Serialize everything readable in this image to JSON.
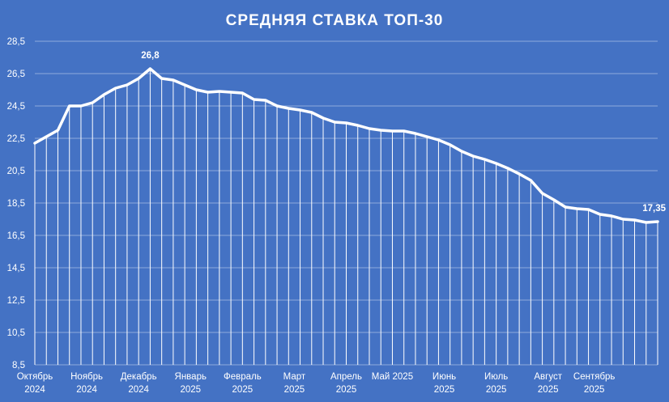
{
  "chart_data": {
    "type": "line",
    "title": "СРЕДНЯЯ СТАВКА ТОП-30",
    "xlabel": "",
    "ylabel": "",
    "ylim": [
      8.5,
      28.5
    ],
    "yticks": [
      "8,5",
      "10,5",
      "12,5",
      "14,5",
      "16,5",
      "18,5",
      "20,5",
      "22,5",
      "24,5",
      "26,5",
      "28,5"
    ],
    "grid": true,
    "month_labels": [
      {
        "month": "Октябрь",
        "year": "2024",
        "index": 0
      },
      {
        "month": "Ноябрь",
        "year": "2024",
        "index": 4.5
      },
      {
        "month": "Декабрь",
        "year": "2024",
        "index": 9
      },
      {
        "month": "Январь",
        "year": "2025",
        "index": 13.5
      },
      {
        "month": "Февраль",
        "year": "2025",
        "index": 18
      },
      {
        "month": "Март",
        "year": "2025",
        "index": 22.5
      },
      {
        "month": "Апрель",
        "year": "2025",
        "index": 27
      },
      {
        "month": "Май 2025",
        "year": "",
        "index": 31
      },
      {
        "month": "Июнь",
        "year": "2025",
        "index": 35.5
      },
      {
        "month": "Июль",
        "year": "2025",
        "index": 40
      },
      {
        "month": "Август",
        "year": "2025",
        "index": 44.5
      },
      {
        "month": "Сентябрь",
        "year": "2025",
        "index": 48.5
      }
    ],
    "series": [
      {
        "values": [
          22.2,
          22.6,
          23.0,
          24.5,
          24.5,
          24.7,
          25.2,
          25.6,
          25.8,
          26.2,
          26.8,
          26.2,
          26.1,
          25.8,
          25.5,
          25.35,
          25.4,
          25.35,
          25.3,
          24.9,
          24.85,
          24.5,
          24.35,
          24.25,
          24.1,
          23.75,
          23.5,
          23.45,
          23.3,
          23.1,
          23.0,
          22.95,
          22.95,
          22.8,
          22.6,
          22.4,
          22.1,
          21.7,
          21.4,
          21.2,
          20.95,
          20.65,
          20.3,
          19.9,
          19.1,
          18.7,
          18.25,
          18.15,
          18.1,
          17.8,
          17.7,
          17.5,
          17.45,
          17.3,
          17.35
        ]
      }
    ],
    "annotations": [
      {
        "text": "26,8",
        "index": 10
      },
      {
        "text": "17,35",
        "index": 54
      }
    ],
    "colors": {
      "background": "#4472c4",
      "line": "#ffffff",
      "grid": "#8eaadb"
    }
  }
}
